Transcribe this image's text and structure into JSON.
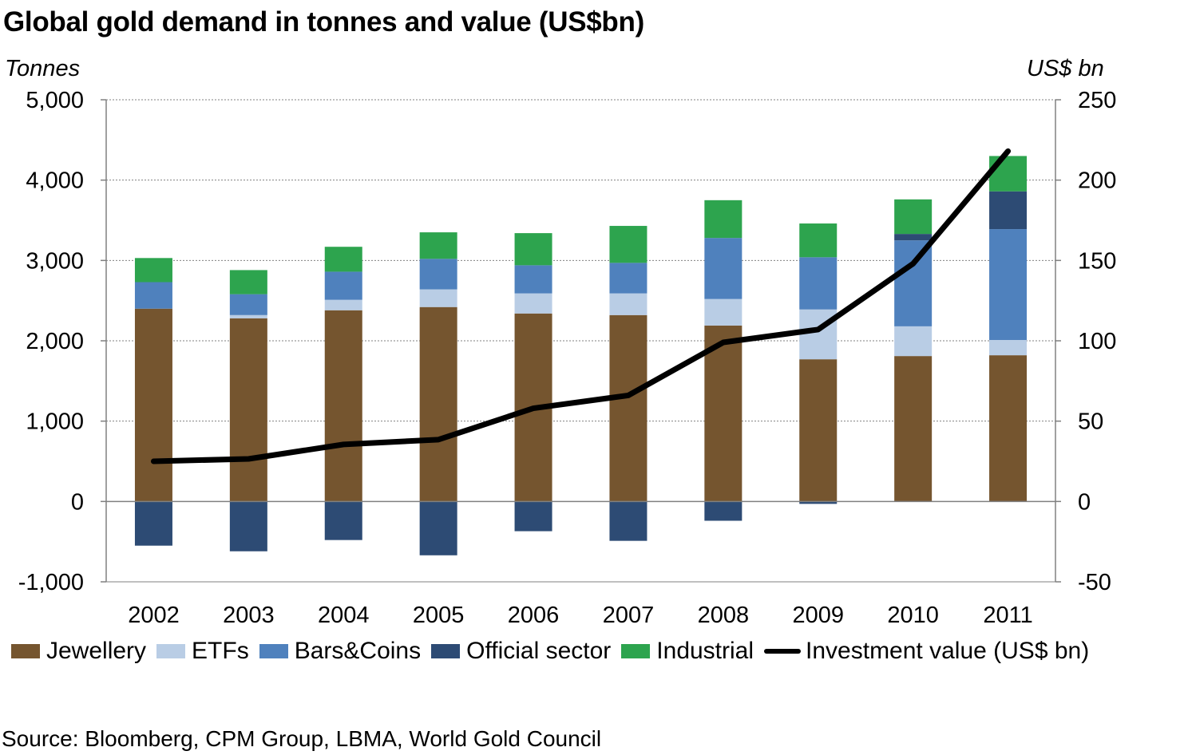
{
  "title": "Global gold demand in tonnes and value (US$bn)",
  "left_axis_title": "Tonnes",
  "right_axis_title": "US$ bn",
  "source": "Source: Bloomberg,  CPM Group, LBMA, World Gold Council",
  "chart_data": {
    "type": "bar",
    "stacked": true,
    "categories": [
      "2002",
      "2003",
      "2004",
      "2005",
      "2006",
      "2007",
      "2008",
      "2009",
      "2010",
      "2011"
    ],
    "y_left": {
      "label": "Tonnes",
      "range": [
        -1000,
        5000
      ],
      "ticks": [
        -1000,
        0,
        1000,
        2000,
        3000,
        4000,
        5000
      ],
      "tick_labels": [
        "-1,000",
        "0",
        "1,000",
        "2,000",
        "3,000",
        "4,000",
        "5,000"
      ]
    },
    "y_right": {
      "label": "US$ bn",
      "range": [
        -50,
        250
      ],
      "ticks": [
        -50,
        0,
        50,
        100,
        150,
        200,
        250
      ],
      "tick_labels": [
        "-50",
        "0",
        "50",
        "100",
        "150",
        "200",
        "250"
      ]
    },
    "grid": true,
    "legend_position": "bottom",
    "series": [
      {
        "name": "Jewellery",
        "color": "#75552F",
        "axis": "left",
        "values": [
          2400,
          2280,
          2380,
          2420,
          2340,
          2320,
          2190,
          1770,
          1810,
          1820
        ]
      },
      {
        "name": "ETFs",
        "color": "#B9CDE5",
        "axis": "left",
        "values": [
          0,
          40,
          130,
          220,
          250,
          270,
          330,
          620,
          370,
          190
        ]
      },
      {
        "name": "Bars&Coins",
        "color": "#4F81BD",
        "axis": "left",
        "values": [
          330,
          260,
          350,
          380,
          350,
          380,
          760,
          650,
          1070,
          1380
        ]
      },
      {
        "name": "Official sector",
        "color": "#2D4B74",
        "axis": "left",
        "values": [
          -550,
          -620,
          -480,
          -670,
          -370,
          -490,
          -240,
          -30,
          80,
          470
        ]
      },
      {
        "name": "Industrial",
        "color": "#2DA44E",
        "axis": "left",
        "values": [
          300,
          300,
          310,
          330,
          400,
          460,
          470,
          420,
          430,
          440
        ]
      },
      {
        "name": "Investment value  (US$ bn)",
        "type": "line",
        "color": "#000000",
        "axis": "right",
        "values": [
          25,
          26.5,
          35.5,
          38.5,
          58,
          66,
          99,
          107,
          148,
          218
        ]
      }
    ]
  }
}
